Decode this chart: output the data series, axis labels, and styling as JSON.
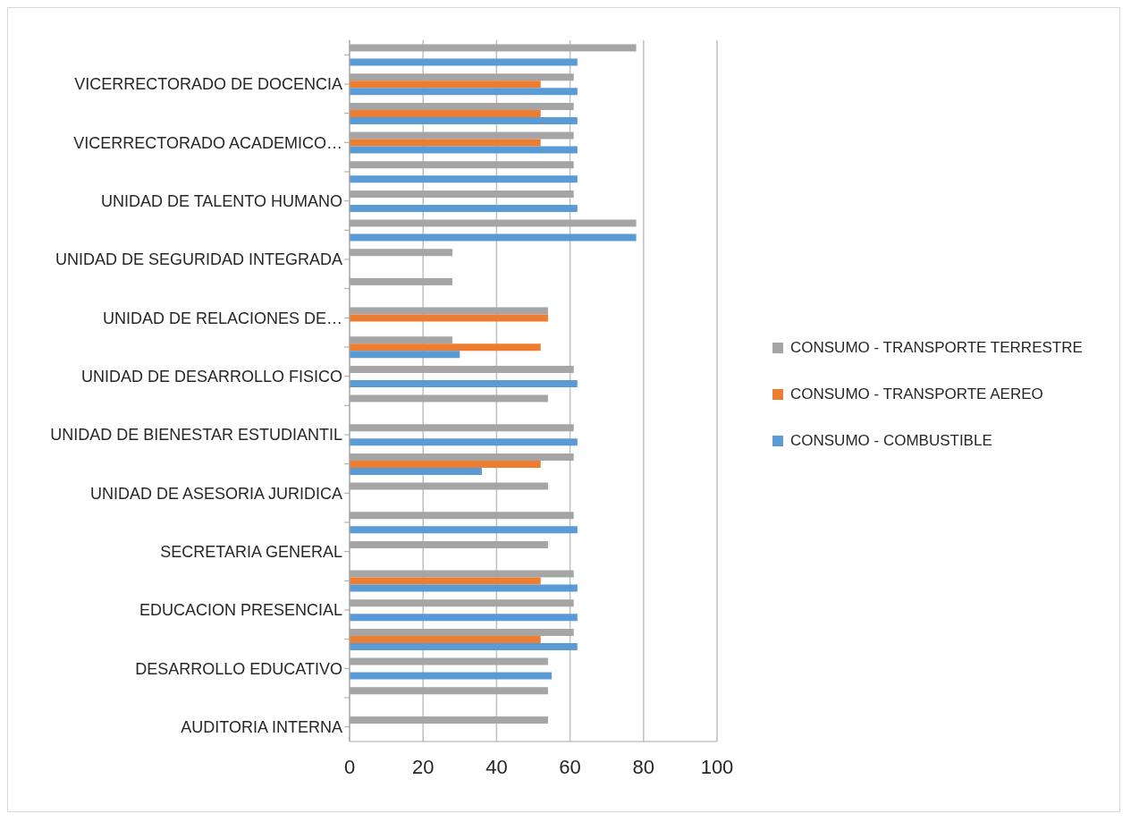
{
  "chart_data": {
    "type": "bar",
    "orientation": "horizontal",
    "categories": [
      null,
      "VICERRECTORADO DE DOCENCIA",
      null,
      "VICERRECTORADO ACADEMICO…",
      null,
      "UNIDAD DE TALENTO HUMANO",
      null,
      "UNIDAD DE SEGURIDAD INTEGRADA",
      null,
      "UNIDAD DE RELACIONES DE…",
      null,
      "UNIDAD DE DESARROLLO FISICO",
      null,
      "UNIDAD DE BIENESTAR ESTUDIANTIL",
      null,
      "UNIDAD DE ASESORIA JURIDICA",
      null,
      "SECRETARIA GENERAL",
      null,
      "EDUCACION PRESENCIAL",
      null,
      "DESARROLLO EDUCATIVO",
      null,
      "AUDITORIA INTERNA"
    ],
    "series": [
      {
        "name": "CONSUMO - TRANSPORTE TERRESTRE",
        "color": "#a5a5a5",
        "values": [
          78,
          61,
          61,
          61,
          61,
          61,
          78,
          28,
          28,
          54,
          28,
          61,
          54,
          61,
          61,
          54,
          61,
          54,
          61,
          61,
          61,
          54,
          54,
          54
        ]
      },
      {
        "name": "CONSUMO - TRANSPORTE AEREO",
        "color": "#ed7d31",
        "values": [
          null,
          52,
          52,
          52,
          null,
          null,
          null,
          null,
          null,
          54,
          52,
          null,
          null,
          null,
          52,
          null,
          null,
          null,
          52,
          null,
          52,
          null,
          null,
          null
        ]
      },
      {
        "name": "CONSUMO - COMBUSTIBLE",
        "color": "#5b9bd5",
        "values": [
          62,
          62,
          62,
          62,
          62,
          62,
          78,
          null,
          null,
          null,
          30,
          62,
          null,
          62,
          36,
          null,
          62,
          null,
          62,
          62,
          62,
          55,
          null,
          null
        ]
      }
    ],
    "xlim": [
      0,
      100
    ],
    "xticks": [
      0,
      20,
      40,
      60,
      80,
      100
    ],
    "grid": "x",
    "legend": "right"
  }
}
